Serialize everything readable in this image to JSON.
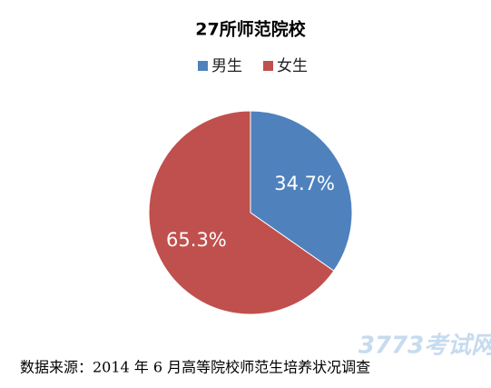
{
  "chart_data": {
    "type": "pie",
    "title": "27所师范院校",
    "categories": [
      "男生",
      "女生"
    ],
    "values": [
      34.7,
      65.3
    ],
    "value_labels": [
      "34.7%",
      "65.3%"
    ],
    "colors": [
      "#4f81bd",
      "#c0504d"
    ],
    "legend": "top",
    "source": "数据来源：2014 年 6 月高等院校师范生培养状况调查",
    "watermark": "3773考试网"
  }
}
